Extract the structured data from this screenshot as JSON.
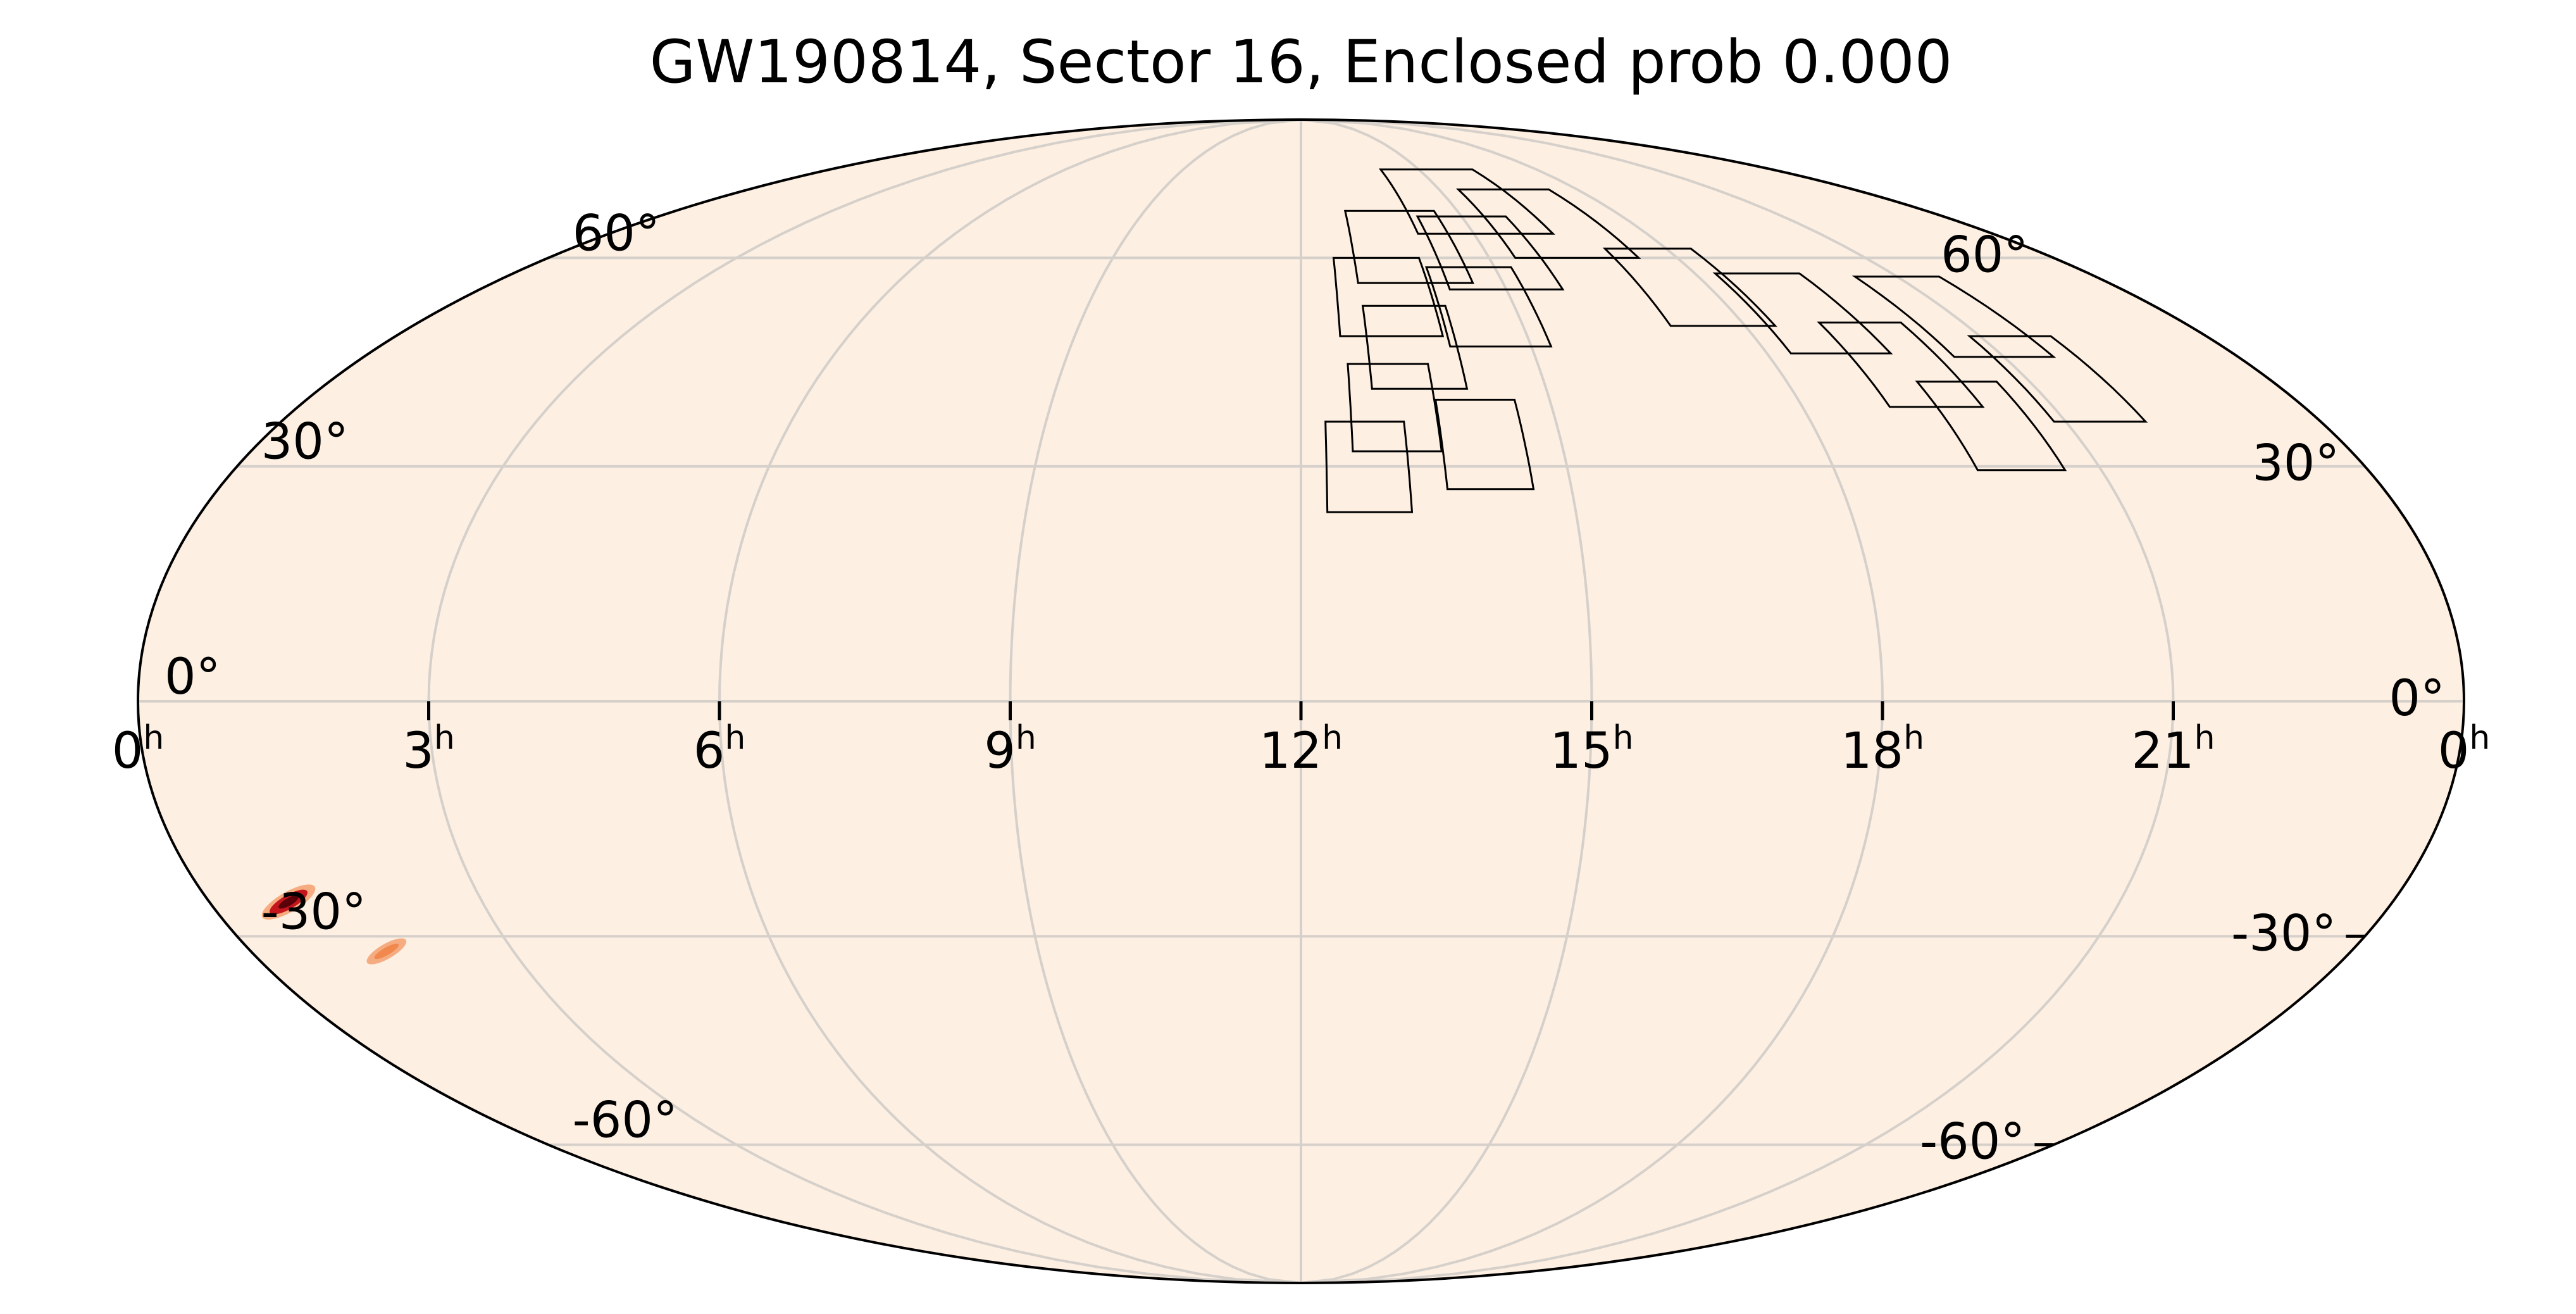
{
  "title": "GW190814, Sector 16, Enclosed prob 0.000",
  "colors": {
    "background": "#fdefe2",
    "grid": "#d6d0cb",
    "outline": "#000000",
    "footprint": "#000000",
    "hotspot_core": "#5a0008",
    "hotspot_mid": "#c4161c",
    "hotspot_edge": "#f5a070"
  },
  "ra_labels": [
    {
      "ra": 24,
      "hour": "0",
      "unit": "h"
    },
    {
      "ra": 21,
      "hour": "21",
      "unit": "h"
    },
    {
      "ra": 18,
      "hour": "18",
      "unit": "h"
    },
    {
      "ra": 15,
      "hour": "15",
      "unit": "h"
    },
    {
      "ra": 12,
      "hour": "12",
      "unit": "h"
    },
    {
      "ra": 9,
      "hour": "9",
      "unit": "h"
    },
    {
      "ra": 6,
      "hour": "6",
      "unit": "h"
    },
    {
      "ra": 3,
      "hour": "3",
      "unit": "h"
    },
    {
      "ra": 0,
      "hour": "0",
      "unit": "h"
    }
  ],
  "dec_labels_left": [
    {
      "dec": 60,
      "text": "60°"
    },
    {
      "dec": 30,
      "text": "30°"
    },
    {
      "dec": 0,
      "text": "0°"
    },
    {
      "dec": -30,
      "text": "-30°"
    },
    {
      "dec": -60,
      "text": "-60°"
    }
  ],
  "dec_labels_right": [
    {
      "dec": 60,
      "text": "60°"
    },
    {
      "dec": 30,
      "text": "30°"
    },
    {
      "dec": 0,
      "text": "0°"
    },
    {
      "dec": -30,
      "text": "-30°"
    },
    {
      "dec": -60,
      "text": "-60°"
    }
  ],
  "footprints": [
    {
      "ra": 20.1,
      "dec": 35.5
    },
    {
      "ra": 21.4,
      "dec": 42.0
    },
    {
      "ra": 19.6,
      "dec": 44.0
    },
    {
      "ra": 21.0,
      "dec": 51.0
    },
    {
      "ra": 18.95,
      "dec": 51.5
    },
    {
      "ra": 17.7,
      "dec": 55.5
    },
    {
      "ra": 16.4,
      "dec": 66.0
    },
    {
      "ra": 15.2,
      "dec": 70.0
    },
    {
      "ra": 15.0,
      "dec": 61.0
    },
    {
      "ra": 14.6,
      "dec": 52.5
    },
    {
      "ra": 13.7,
      "dec": 62.0
    },
    {
      "ra": 13.45,
      "dec": 46.5
    },
    {
      "ra": 13.1,
      "dec": 38.0
    },
    {
      "ra": 12.75,
      "dec": 30.0
    },
    {
      "ra": 14.1,
      "dec": 33.0
    },
    {
      "ra": 13.2,
      "dec": 54.0
    }
  ],
  "hotspots": [
    {
      "ra": 0.87,
      "dec": -25.5,
      "strength": 1.0
    },
    {
      "ra": 1.55,
      "dec": -32.0,
      "strength": 0.35
    }
  ]
}
